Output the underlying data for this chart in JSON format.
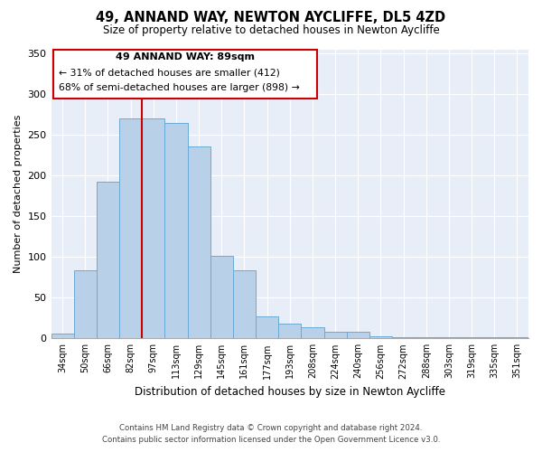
{
  "title": "49, ANNAND WAY, NEWTON AYCLIFFE, DL5 4ZD",
  "subtitle": "Size of property relative to detached houses in Newton Aycliffe",
  "xlabel": "Distribution of detached houses by size in Newton Aycliffe",
  "ylabel": "Number of detached properties",
  "categories": [
    "34sqm",
    "50sqm",
    "66sqm",
    "82sqm",
    "97sqm",
    "113sqm",
    "129sqm",
    "145sqm",
    "161sqm",
    "177sqm",
    "193sqm",
    "208sqm",
    "224sqm",
    "240sqm",
    "256sqm",
    "272sqm",
    "288sqm",
    "303sqm",
    "319sqm",
    "335sqm",
    "351sqm"
  ],
  "values": [
    6,
    84,
    193,
    271,
    271,
    265,
    236,
    102,
    84,
    27,
    18,
    14,
    8,
    8,
    3,
    2,
    2,
    1,
    2,
    1,
    1
  ],
  "bar_color": "#b8d0e8",
  "bar_edge_color": "#6aaad4",
  "marker_color": "#cc0000",
  "annotation_title": "49 ANNAND WAY: 89sqm",
  "annotation_line1": "← 31% of detached houses are smaller (412)",
  "annotation_line2": "68% of semi-detached houses are larger (898) →",
  "annotation_box_color": "#ffffff",
  "annotation_box_edge_color": "#cc0000",
  "footer_line1": "Contains HM Land Registry data © Crown copyright and database right 2024.",
  "footer_line2": "Contains public sector information licensed under the Open Government Licence v3.0.",
  "ylim": [
    0,
    355
  ],
  "yticks": [
    0,
    50,
    100,
    150,
    200,
    250,
    300,
    350
  ],
  "background_color": "#ffffff",
  "plot_bg_color": "#e8eef8",
  "grid_color": "#ffffff"
}
